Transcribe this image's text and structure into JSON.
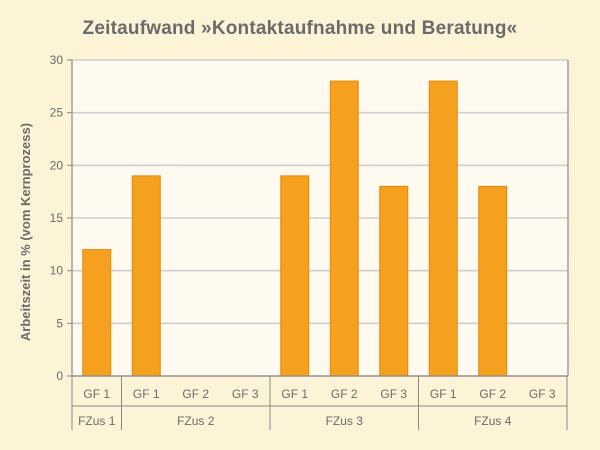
{
  "chart_data": {
    "type": "bar",
    "title": "Zeitaufwand »Kontaktaufnahme und Beratung«",
    "ylabel": "Arbeitszeit in % (vom Kernprozess)",
    "xlabel": "",
    "ylim": [
      0,
      30
    ],
    "yticks": [
      0,
      5,
      10,
      15,
      20,
      25,
      30
    ],
    "grid": true,
    "groups": [
      {
        "label": "FZus 1",
        "categories": [
          "GF 1"
        ],
        "values": [
          12
        ]
      },
      {
        "label": "FZus 2",
        "categories": [
          "GF 1",
          "GF 2",
          "GF 3"
        ],
        "values": [
          19,
          null,
          null
        ]
      },
      {
        "label": "FZus 3",
        "categories": [
          "GF 1",
          "GF 2",
          "GF 3"
        ],
        "values": [
          19,
          28,
          18
        ]
      },
      {
        "label": "FZus 4",
        "categories": [
          "GF 1",
          "GF 2",
          "GF 3"
        ],
        "values": [
          28,
          18,
          null
        ]
      }
    ],
    "colors": {
      "bar": "#f5a01e",
      "bar_edge": "#e08a0c",
      "grid": "#cfcfcf",
      "axis": "#8a8a8a",
      "plot_bg": "#fefaf0",
      "page_bg": "#fdf3d6"
    }
  }
}
